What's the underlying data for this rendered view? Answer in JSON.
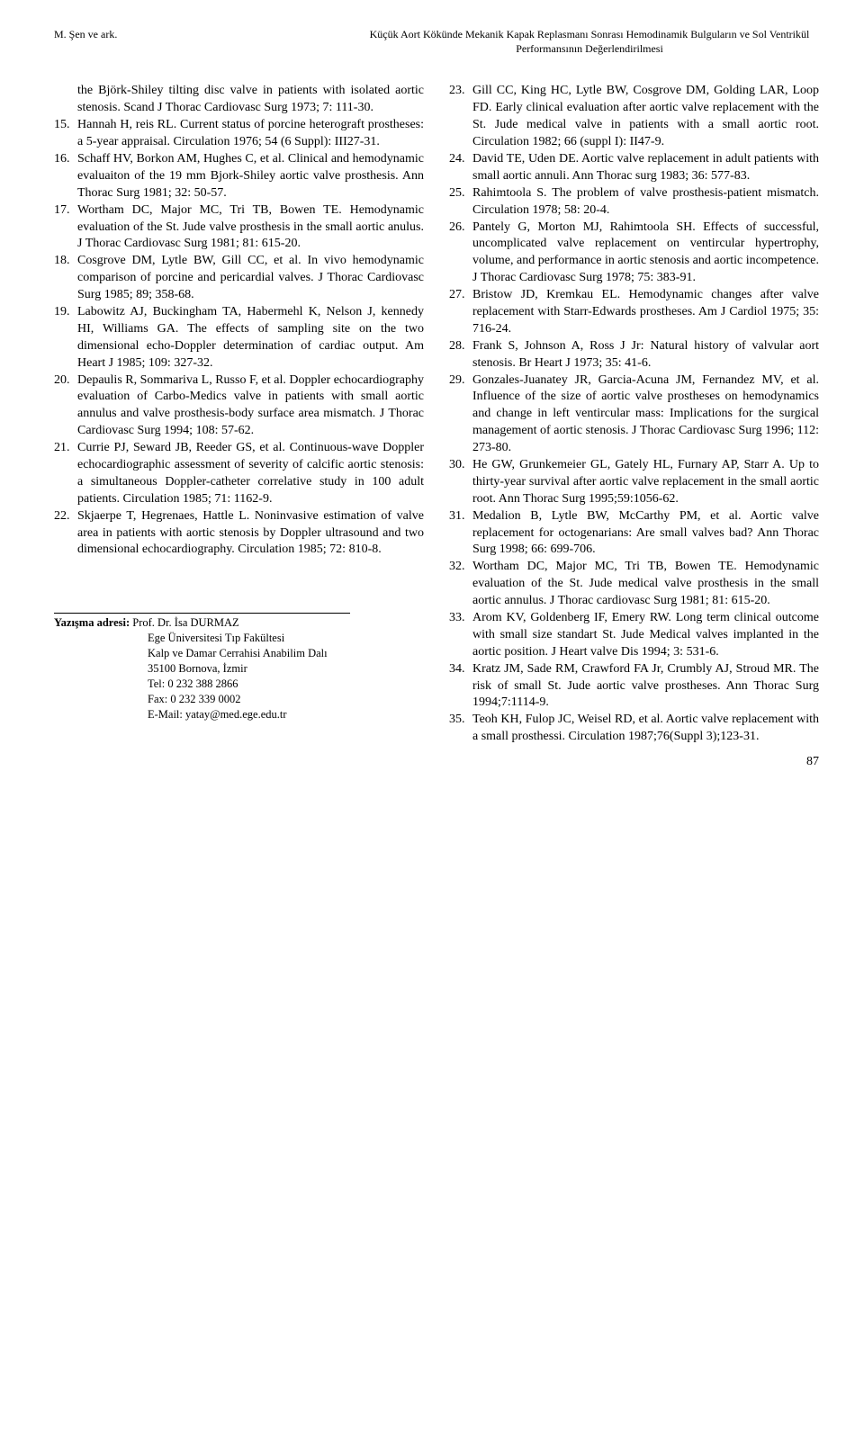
{
  "header": {
    "authors": "M. Şen ve ark.",
    "title": "Küçük Aort Kökünde Mekanik Kapak Replasmanı Sonrası Hemodinamik Bulguların ve Sol Ventrikül Performansının Değerlendirilmesi"
  },
  "leftOrphan": "the Björk-Shiley tilting disc valve in patients with isolated aortic stenosis. Scand J Thorac Cardiovasc Surg 1973; 7: 111-30.",
  "leftRefs": [
    {
      "n": "15.",
      "t": "Hannah H, reis RL. Current status of porcine heterograft prostheses: a 5-year appraisal. Circulation 1976; 54 (6 Suppl): III27-31."
    },
    {
      "n": "16.",
      "t": "Schaff HV, Borkon AM, Hughes C, et al. Clinical and hemodynamic evaluaiton of the 19 mm Bjork-Shiley aortic valve prosthesis. Ann Thorac Surg 1981; 32: 50-57."
    },
    {
      "n": "17.",
      "t": "Wortham DC, Major MC, Tri TB, Bowen TE. Hemodynamic evaluation of the St. Jude valve prosthesis in the small aortic anulus. J Thorac Cardiovasc Surg 1981; 81: 615-20."
    },
    {
      "n": "18.",
      "t": "Cosgrove DM, Lytle BW, Gill CC, et al. In vivo hemodynamic comparison of porcine and pericardial valves. J Thorac Cardiovasc Surg 1985; 89; 358-68."
    },
    {
      "n": "19.",
      "t": "Labowitz AJ, Buckingham TA, Habermehl K, Nelson J, kennedy HI, Williams GA. The effects of sampling site on the two dimensional echo-Doppler determination of cardiac output. Am Heart J 1985; 109: 327-32."
    },
    {
      "n": "20.",
      "t": "Depaulis R, Sommariva L, Russo F, et al. Doppler echocardiography evaluation of Carbo-Medics valve in patients with small aortic annulus and valve prosthesis-body surface area mismatch. J Thorac Cardiovasc Surg 1994; 108: 57-62."
    },
    {
      "n": "21.",
      "t": "Currie PJ, Seward JB, Reeder GS, et al. Continuous-wave Doppler echocardiographic assessment of severity of calcific aortic stenosis: a simultaneous Doppler-catheter correlative study in 100 adult patients. Circulation 1985; 71: 1162-9."
    },
    {
      "n": "22.",
      "t": "Skjaerpe T, Hegrenaes, Hattle L. Noninvasive estimation of valve area in patients with aortic stenosis by Doppler ultrasound and two dimensional echocardiography. Circulation 1985; 72: 810-8."
    }
  ],
  "rightRefs": [
    {
      "n": "23.",
      "t": "Gill CC, King HC, Lytle BW, Cosgrove DM, Golding LAR, Loop FD. Early clinical evaluation after aortic valve replacement with the St. Jude medical valve in patients with a small aortic root. Circulation 1982; 66 (suppl I): II47-9."
    },
    {
      "n": "24.",
      "t": "David TE, Uden DE. Aortic valve replacement in adult patients with small aortic annuli. Ann Thorac surg 1983; 36: 577-83."
    },
    {
      "n": "25.",
      "t": "Rahimtoola S. The problem of valve prosthesis-patient mismatch. Circulation 1978; 58: 20-4."
    },
    {
      "n": "26.",
      "t": "Pantely G, Morton MJ, Rahimtoola SH. Effects of successful, uncomplicated valve replacement on ventircular hypertrophy, volume, and performance in aortic stenosis and aortic incompetence. J Thorac Cardiovasc Surg 1978; 75: 383-91."
    },
    {
      "n": "27.",
      "t": "Bristow JD, Kremkau EL. Hemodynamic changes after valve replacement with Starr-Edwards prostheses. Am J Cardiol 1975; 35: 716-24."
    },
    {
      "n": "28.",
      "t": "Frank S, Johnson A, Ross J Jr: Natural history of valvular aort stenosis. Br Heart J 1973; 35: 41-6."
    },
    {
      "n": "29.",
      "t": "Gonzales-Juanatey JR, Garcia-Acuna JM, Fernandez MV, et al. Influence of the size of aortic valve prostheses on hemodynamics and change in left ventircular mass: Implications for the surgical management of aortic stenosis. J Thorac Cardiovasc Surg 1996; 112: 273-80."
    },
    {
      "n": "30.",
      "t": "He GW, Grunkemeier GL, Gately HL, Furnary AP, Starr A. Up to thirty-year survival after aortic valve replacement in the small aortic root. Ann Thorac Surg 1995;59:1056-62."
    },
    {
      "n": "31.",
      "t": "Medalion B, Lytle BW, McCarthy PM, et al. Aortic valve replacement for octogenarians: Are small valves bad? Ann Thorac Surg 1998; 66: 699-706."
    },
    {
      "n": "32.",
      "t": "Wortham DC, Major MC, Tri TB, Bowen TE. Hemodynamic evaluation of the St. Jude medical valve prosthesis in the small aortic annulus. J Thorac cardiovasc Surg 1981; 81: 615-20."
    },
    {
      "n": "33.",
      "t": "Arom KV, Goldenberg IF, Emery RW. Long term clinical outcome with small size standart St. Jude Medical valves implanted in the aortic position. J Heart valve Dis 1994; 3: 531-6."
    },
    {
      "n": "34.",
      "t": "Kratz JM, Sade RM, Crawford FA Jr, Crumbly AJ, Stroud MR. The risk of small St. Jude aortic valve prostheses. Ann Thorac Surg 1994;7:1114-9."
    },
    {
      "n": "35.",
      "t": "Teoh KH, Fulop JC, Weisel RD, et al. Aortic valve replacement with a small prosthessi. Circulation 1987;76(Suppl 3);123-31."
    }
  ],
  "corr": {
    "label": "Yazışma adresi:",
    "name": "Prof. Dr. İsa DURMAZ",
    "lines": [
      "Ege Üniversitesi Tıp Fakültesi",
      "Kalp ve Damar Cerrahisi Anabilim Dalı",
      "35100 Bornova, İzmir",
      "Tel: 0 232 388 2866",
      "Fax: 0 232 339 0002",
      "E-Mail: yatay@med.ege.edu.tr"
    ]
  },
  "pageNum": "87"
}
